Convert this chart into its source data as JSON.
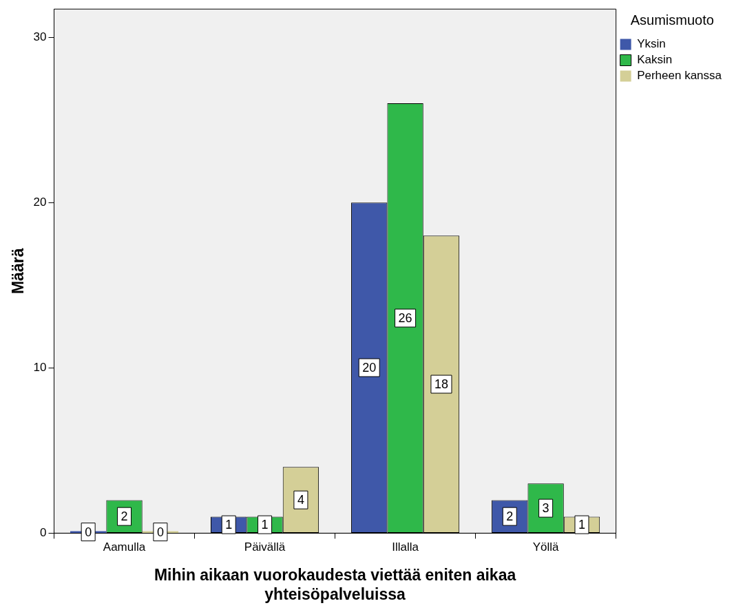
{
  "chart_data": {
    "type": "bar",
    "xlabel": "Mihin aikaan vuorokaudesta viettää eniten aikaa yhteisöpalveluissa",
    "ylabel": "Määrä",
    "legend_title": "Asumismuoto",
    "legend": "top right",
    "categories": [
      "Aamulla",
      "Päivällä",
      "Illalla",
      "Yöllä"
    ],
    "series": [
      {
        "name": "Yksin",
        "color": "#3f58a9",
        "values": [
          0,
          1,
          20,
          2
        ]
      },
      {
        "name": "Kaksin",
        "color": "#2fb84a",
        "values": [
          2,
          1,
          26,
          3
        ]
      },
      {
        "name": "Perheen kanssa",
        "color": "#d4cf97",
        "values": [
          0,
          4,
          18,
          1
        ]
      }
    ],
    "ylim": [
      0,
      31.7
    ],
    "yticks": [
      0,
      10,
      20,
      30
    ],
    "grid": false,
    "data_labels": true
  }
}
